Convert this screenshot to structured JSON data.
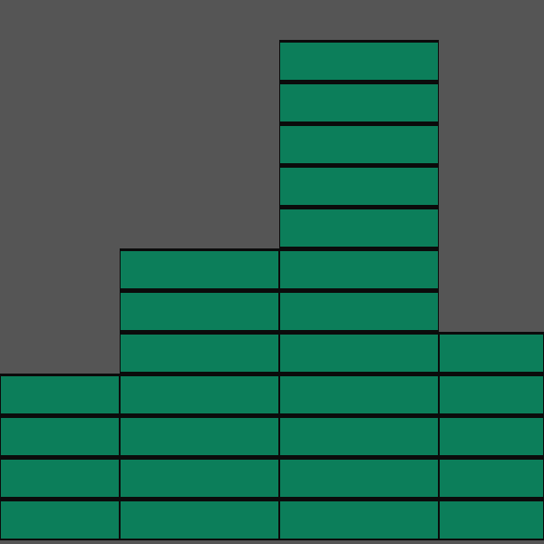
{
  "board": {
    "background_color": "#555555",
    "block_color": "#0c7e5a",
    "outline_color": "#0b0b0b",
    "columns": [
      {
        "name": "column-1",
        "block_count": 4
      },
      {
        "name": "column-2",
        "block_count": 7
      },
      {
        "name": "column-3",
        "block_count": 12
      },
      {
        "name": "column-4",
        "block_count": 5
      }
    ]
  }
}
